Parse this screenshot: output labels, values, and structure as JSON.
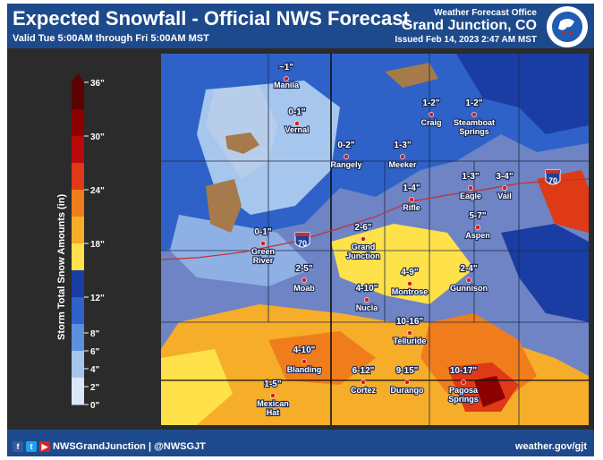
{
  "header": {
    "title": "Expected Snowfall - Official NWS Forecast",
    "valid": "Valid Tue 5:00AM through Fri 5:00AM MST",
    "office": "Weather Forecast Office",
    "city": "Grand Junction, CO",
    "issued": "Issued Feb 14, 2023 2:47 AM MST",
    "logo_text": "NATIONAL WEATHER SERVICE"
  },
  "legend": {
    "title": "Storm Total Snow Amounts (in)",
    "ticks": [
      "36\"",
      "30\"",
      "24\"",
      "18\"",
      "12\"",
      "8\"",
      "6\"",
      "4\"",
      "2\"",
      "0\""
    ],
    "colors": [
      "#5c0000",
      "#8b0000",
      "#b80a0a",
      "#de3a16",
      "#f07d1c",
      "#f5ad2a",
      "#ffe14a",
      "#1a3da3",
      "#2e62c8",
      "#5c8fdc",
      "#a6c6ee",
      "#d9e8f8"
    ]
  },
  "map": {
    "highway_labels": [
      "70",
      "70"
    ],
    "locations": [
      {
        "name": "Manila",
        "amount": "~1\""
      },
      {
        "name": "Vernal",
        "amount": "0-1\""
      },
      {
        "name": "Rangely",
        "amount": "0-2\""
      },
      {
        "name": "Meeker",
        "amount": "1-3\""
      },
      {
        "name": "Craig",
        "amount": "1-2\""
      },
      {
        "name": "Steamboat Springs",
        "amount": "1-2\""
      },
      {
        "name": "Rifle",
        "amount": "1-4\""
      },
      {
        "name": "Eagle",
        "amount": "1-3\""
      },
      {
        "name": "Vail",
        "amount": "3-4\""
      },
      {
        "name": "Aspen",
        "amount": "5-7\""
      },
      {
        "name": "Green River",
        "amount": "0-1\""
      },
      {
        "name": "Grand Junction",
        "amount": "2-6\""
      },
      {
        "name": "Moab",
        "amount": "2-5\""
      },
      {
        "name": "Montrose",
        "amount": "4-9\""
      },
      {
        "name": "Gunnison",
        "amount": "2-4\""
      },
      {
        "name": "Nucla",
        "amount": "4-10\""
      },
      {
        "name": "Telluride",
        "amount": "10-16\""
      },
      {
        "name": "Blanding",
        "amount": "4-10\""
      },
      {
        "name": "Cortez",
        "amount": "6-12\""
      },
      {
        "name": "Durango",
        "amount": "9-15\""
      },
      {
        "name": "Pagosa Springs",
        "amount": "10-17\""
      },
      {
        "name": "Mexican Hat",
        "amount": "1-5\""
      }
    ]
  },
  "footer": {
    "social": "NWSGrandJunction | @NWSGJT",
    "website": "weather.gov/gjt"
  }
}
